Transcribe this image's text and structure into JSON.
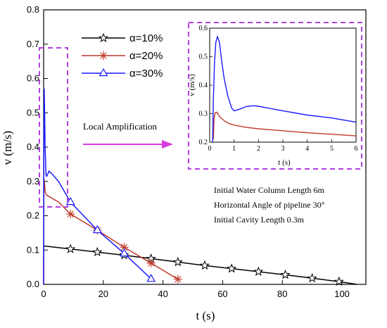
{
  "chart_data": [
    {
      "type": "line",
      "xlabel": "t (s)",
      "ylabel": "v (m/s)",
      "xlim": [
        0,
        108
      ],
      "ylim": [
        0,
        0.8
      ],
      "xticks": [
        "0",
        "20",
        "40",
        "60",
        "80",
        "100"
      ],
      "yticks": [
        "0.0",
        "0.1",
        "0.2",
        "0.3",
        "0.4",
        "0.5",
        "0.6",
        "0.7",
        "0.8"
      ],
      "legend_position": "top-center",
      "series": [
        {
          "name": "α=10%",
          "color": "#000000",
          "marker": "star",
          "x": [
            0,
            9,
            18,
            27,
            36,
            45,
            54,
            63,
            72,
            81,
            90,
            99,
            105
          ],
          "y": [
            0.112,
            0.103,
            0.094,
            0.085,
            0.075,
            0.065,
            0.055,
            0.046,
            0.037,
            0.028,
            0.018,
            0.008,
            0.0
          ],
          "marker_x": [
            9,
            18,
            27,
            36,
            45,
            54,
            63,
            72,
            81,
            90,
            99
          ]
        },
        {
          "name": "α=20%",
          "color": "#c0392b",
          "marker": "asterisk",
          "x": [
            0,
            0.1,
            0.2,
            0.3,
            0.5,
            1,
            2,
            3,
            5,
            9,
            18,
            27,
            36,
            45
          ],
          "y": [
            0.0,
            0.28,
            0.305,
            0.295,
            0.27,
            0.26,
            0.255,
            0.25,
            0.24,
            0.205,
            0.158,
            0.108,
            0.062,
            0.015
          ],
          "marker_x": [
            9,
            18,
            27,
            36,
            45
          ]
        },
        {
          "name": "α=30%",
          "color": "#1a1aff",
          "marker": "triangle",
          "x": [
            0,
            0.1,
            0.2,
            0.3,
            0.5,
            0.8,
            1.0,
            1.3,
            1.8,
            3,
            5,
            9,
            18,
            27,
            36
          ],
          "y": [
            0.0,
            0.46,
            0.57,
            0.52,
            0.4,
            0.32,
            0.315,
            0.32,
            0.33,
            0.32,
            0.3,
            0.24,
            0.158,
            0.09,
            0.016
          ],
          "marker_x": [
            9,
            18,
            27,
            36
          ]
        }
      ]
    },
    {
      "type": "line",
      "xlabel": "t (s)",
      "ylabel": "v (m/s)",
      "xlim": [
        0,
        6
      ],
      "ylim": [
        0.2,
        0.6
      ],
      "xticks": [
        "0",
        "1",
        "2",
        "3",
        "4",
        "5",
        "6"
      ],
      "yticks": [
        "0.2",
        "0.3",
        "0.4",
        "0.5",
        "0.6"
      ],
      "series": [
        {
          "color": "#c0392b",
          "x": [
            0.15,
            0.18,
            0.22,
            0.3,
            0.4,
            0.6,
            0.8,
            1.0,
            1.5,
            2,
            3,
            4,
            5,
            6
          ],
          "y": [
            0.21,
            0.28,
            0.303,
            0.305,
            0.29,
            0.275,
            0.265,
            0.26,
            0.252,
            0.247,
            0.24,
            0.233,
            0.228,
            0.222
          ]
        },
        {
          "color": "#1a1aff",
          "x": [
            0.12,
            0.15,
            0.2,
            0.25,
            0.32,
            0.4,
            0.5,
            0.6,
            0.75,
            0.9,
            1.0,
            1.2,
            1.5,
            1.8,
            2,
            3,
            4,
            5,
            6
          ],
          "y": [
            0.2,
            0.35,
            0.48,
            0.55,
            0.57,
            0.55,
            0.48,
            0.42,
            0.36,
            0.32,
            0.31,
            0.315,
            0.325,
            0.328,
            0.326,
            0.31,
            0.295,
            0.285,
            0.27
          ]
        }
      ]
    }
  ],
  "annotations": {
    "local_amplification": "Local Amplification",
    "note_lines": [
      "Initial Water Column Length 6m",
      "Horizontal Angle of pipeline 30°",
      "Initial Cavity Length 0.3m"
    ]
  },
  "colors": {
    "dash_box": "#b040e0",
    "arrow": "#d63adf"
  }
}
